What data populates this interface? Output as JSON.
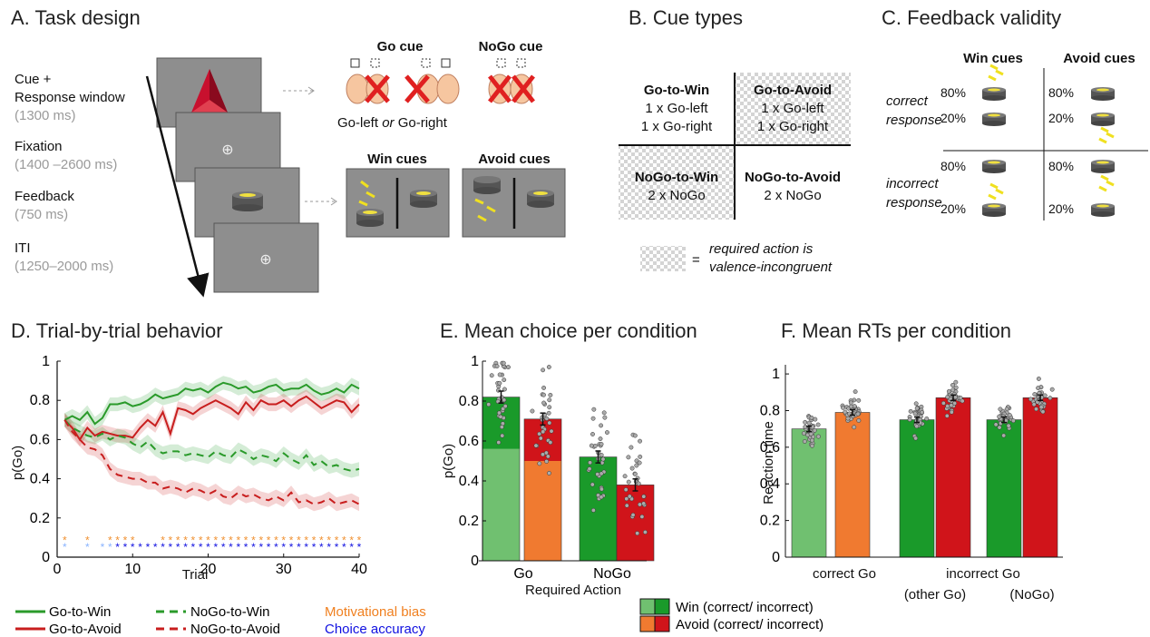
{
  "panel_a": {
    "title": "A. Task design",
    "steps": [
      {
        "label_line1": "Cue +",
        "label_line2": "Response window",
        "time": "(1300 ms)"
      },
      {
        "label_line1": "Fixation",
        "label_line2": "",
        "time": "(1400 –2600 ms)"
      },
      {
        "label_line1": "Feedback",
        "label_line2": "",
        "time": "(750 ms)"
      },
      {
        "label_line1": "ITI",
        "label_line2": "",
        "time": "(1250–2000 ms)"
      }
    ],
    "go_cue": "Go cue",
    "nogo_cue": "NoGo cue",
    "go_caption_a": "Go-left",
    "go_caption_or": "or",
    "go_caption_b": "Go-right",
    "win_cues": "Win cues",
    "avoid_cues": "Avoid cues",
    "fixation_symbol": "⊕"
  },
  "panel_b": {
    "title": "B. Cue types",
    "cells": [
      {
        "name": "Go-to-Win",
        "line1": "1 x Go-left",
        "line2": "1 x Go-right",
        "checker": false
      },
      {
        "name": "Go-to-Avoid",
        "line1": "1 x Go-left",
        "line2": "1 x Go-right",
        "checker": true
      },
      {
        "name": "NoGo-to-Win",
        "line1": "2 x NoGo",
        "line2": "",
        "checker": true
      },
      {
        "name": "NoGo-to-Avoid",
        "line1": "2 x NoGo",
        "line2": "",
        "checker": false
      }
    ],
    "legend_eq": "=",
    "legend_line1": "required action is",
    "legend_line2": "valence-incongruent"
  },
  "panel_c": {
    "title": "C. Feedback validity",
    "col_win": "Win cues",
    "col_avoid": "Avoid cues",
    "row_correct_1": "correct",
    "row_correct_2": "response",
    "row_incorrect_1": "incorrect",
    "row_incorrect_2": "response",
    "p80": "80%",
    "p20": "20%"
  },
  "panel_d": {
    "title": "D. Trial-by-trial behavior",
    "xlabel": "Trial",
    "ylabel": "p(Go)",
    "legend": {
      "go_win": "Go-to-Win",
      "go_avoid": "Go-to-Avoid",
      "nogo_win": "NoGo-to-Win",
      "nogo_avoid": "NoGo-to-Avoid",
      "motivational_bias": "Motivational bias",
      "choice_accuracy": "Choice accuracy"
    }
  },
  "panel_e": {
    "title": "E. Mean choice per condition",
    "xlabel": "Required Action",
    "ylabel": "p(Go)",
    "legend_win": "Win (correct/ incorrect)",
    "legend_avoid": "Avoid (correct/ incorrect)"
  },
  "panel_f": {
    "title": "F. Mean RTs per condition",
    "ylabel": "Reaction time",
    "group1": "correct Go",
    "group2": "incorrect Go",
    "group2a": "(other Go)",
    "group2b": "(NoGo)"
  },
  "colors": {
    "win_light": "#70c070",
    "win_dark": "#1a9a2a",
    "avoid_light": "#f07a30",
    "avoid_dark": "#d0141a",
    "bias": "#f08020",
    "accuracy": "#1010e0"
  },
  "chart_data": [
    {
      "type": "line",
      "panel": "D",
      "title": "D. Trial-by-trial behavior",
      "xlabel": "Trial",
      "ylabel": "p(Go)",
      "xlim": [
        0,
        40
      ],
      "ylim": [
        0,
        1
      ],
      "xticks": [
        0,
        10,
        20,
        30,
        40
      ],
      "yticks": [
        0,
        0.2,
        0.4,
        0.6,
        0.8,
        1
      ],
      "series": [
        {
          "name": "Go-to-Win",
          "color": "#2a9a2a",
          "dash": false,
          "values": [
            0.7,
            0.72,
            0.7,
            0.74,
            0.68,
            0.71,
            0.78,
            0.78,
            0.79,
            0.77,
            0.78,
            0.8,
            0.83,
            0.81,
            0.82,
            0.83,
            0.86,
            0.85,
            0.86,
            0.84,
            0.87,
            0.89,
            0.88,
            0.86,
            0.87,
            0.84,
            0.85,
            0.87,
            0.88,
            0.85,
            0.86,
            0.86,
            0.88,
            0.85,
            0.83,
            0.84,
            0.86,
            0.84,
            0.88,
            0.86
          ]
        },
        {
          "name": "Go-to-Avoid",
          "color": "#c81e1e",
          "dash": false,
          "values": [
            0.7,
            0.66,
            0.6,
            0.66,
            0.62,
            0.64,
            0.63,
            0.62,
            0.62,
            0.61,
            0.66,
            0.7,
            0.67,
            0.74,
            0.63,
            0.76,
            0.75,
            0.73,
            0.76,
            0.78,
            0.8,
            0.78,
            0.76,
            0.73,
            0.79,
            0.75,
            0.8,
            0.78,
            0.78,
            0.8,
            0.77,
            0.8,
            0.82,
            0.79,
            0.76,
            0.78,
            0.8,
            0.79,
            0.74,
            0.78
          ]
        },
        {
          "name": "NoGo-to-Win",
          "color": "#2a9a2a",
          "dash": true,
          "values": [
            0.7,
            0.66,
            0.64,
            0.62,
            0.61,
            0.63,
            0.6,
            0.62,
            0.61,
            0.58,
            0.56,
            0.59,
            0.55,
            0.53,
            0.54,
            0.54,
            0.52,
            0.53,
            0.52,
            0.51,
            0.54,
            0.52,
            0.51,
            0.55,
            0.53,
            0.5,
            0.52,
            0.51,
            0.49,
            0.53,
            0.5,
            0.48,
            0.52,
            0.47,
            0.49,
            0.46,
            0.47,
            0.45,
            0.44,
            0.45
          ]
        },
        {
          "name": "NoGo-to-Avoid",
          "color": "#c81e1e",
          "dash": true,
          "values": [
            0.7,
            0.64,
            0.6,
            0.56,
            0.55,
            0.52,
            0.45,
            0.42,
            0.41,
            0.4,
            0.4,
            0.38,
            0.38,
            0.35,
            0.36,
            0.35,
            0.33,
            0.35,
            0.34,
            0.32,
            0.34,
            0.31,
            0.3,
            0.33,
            0.31,
            0.32,
            0.3,
            0.29,
            0.31,
            0.29,
            0.33,
            0.28,
            0.29,
            0.27,
            0.28,
            0.3,
            0.27,
            0.28,
            0.29,
            0.27
          ]
        }
      ],
      "markers": {
        "motivational_bias_trials": [
          1,
          4,
          7,
          8,
          9,
          10,
          14,
          15,
          16,
          17,
          18,
          19,
          20,
          21,
          22,
          23,
          24,
          25,
          26,
          27,
          28,
          29,
          30,
          31,
          32,
          33,
          34,
          35,
          36,
          37,
          38,
          39,
          40
        ],
        "choice_accuracy_trials": [
          1,
          4,
          6,
          7,
          8,
          9,
          10,
          11,
          12,
          13,
          14,
          15,
          16,
          17,
          18,
          19,
          20,
          21,
          22,
          23,
          24,
          25,
          26,
          27,
          28,
          29,
          30,
          31,
          32,
          33,
          34,
          35,
          36,
          37,
          38,
          39,
          40
        ]
      }
    },
    {
      "type": "bar",
      "panel": "E",
      "title": "E. Mean choice per condition",
      "xlabel": "Required Action",
      "ylabel": "p(Go)",
      "categories": [
        "Go",
        "NoGo"
      ],
      "ylim": [
        0,
        1
      ],
      "yticks": [
        0,
        0.2,
        0.4,
        0.6,
        0.8,
        1
      ],
      "series": [
        {
          "name": "Win (correct/ incorrect)",
          "values": [
            0.82,
            0.52
          ],
          "split": [
            0.56,
            null
          ]
        },
        {
          "name": "Avoid (correct/ incorrect)",
          "values": [
            0.71,
            0.38
          ],
          "split": [
            0.5,
            null
          ]
        }
      ]
    },
    {
      "type": "bar",
      "panel": "F",
      "title": "F. Mean RTs per condition",
      "ylabel": "Reaction time",
      "ylim": [
        0,
        1.05
      ],
      "yticks": [
        0,
        0.2,
        0.4,
        0.6,
        0.8,
        1
      ],
      "categories": [
        "correct Go",
        "incorrect Go (other Go)",
        "incorrect Go (NoGo)"
      ],
      "series": [
        {
          "name": "Win",
          "values": [
            0.7,
            0.75,
            0.75
          ]
        },
        {
          "name": "Avoid",
          "values": [
            0.79,
            0.87,
            0.87
          ]
        }
      ]
    }
  ]
}
